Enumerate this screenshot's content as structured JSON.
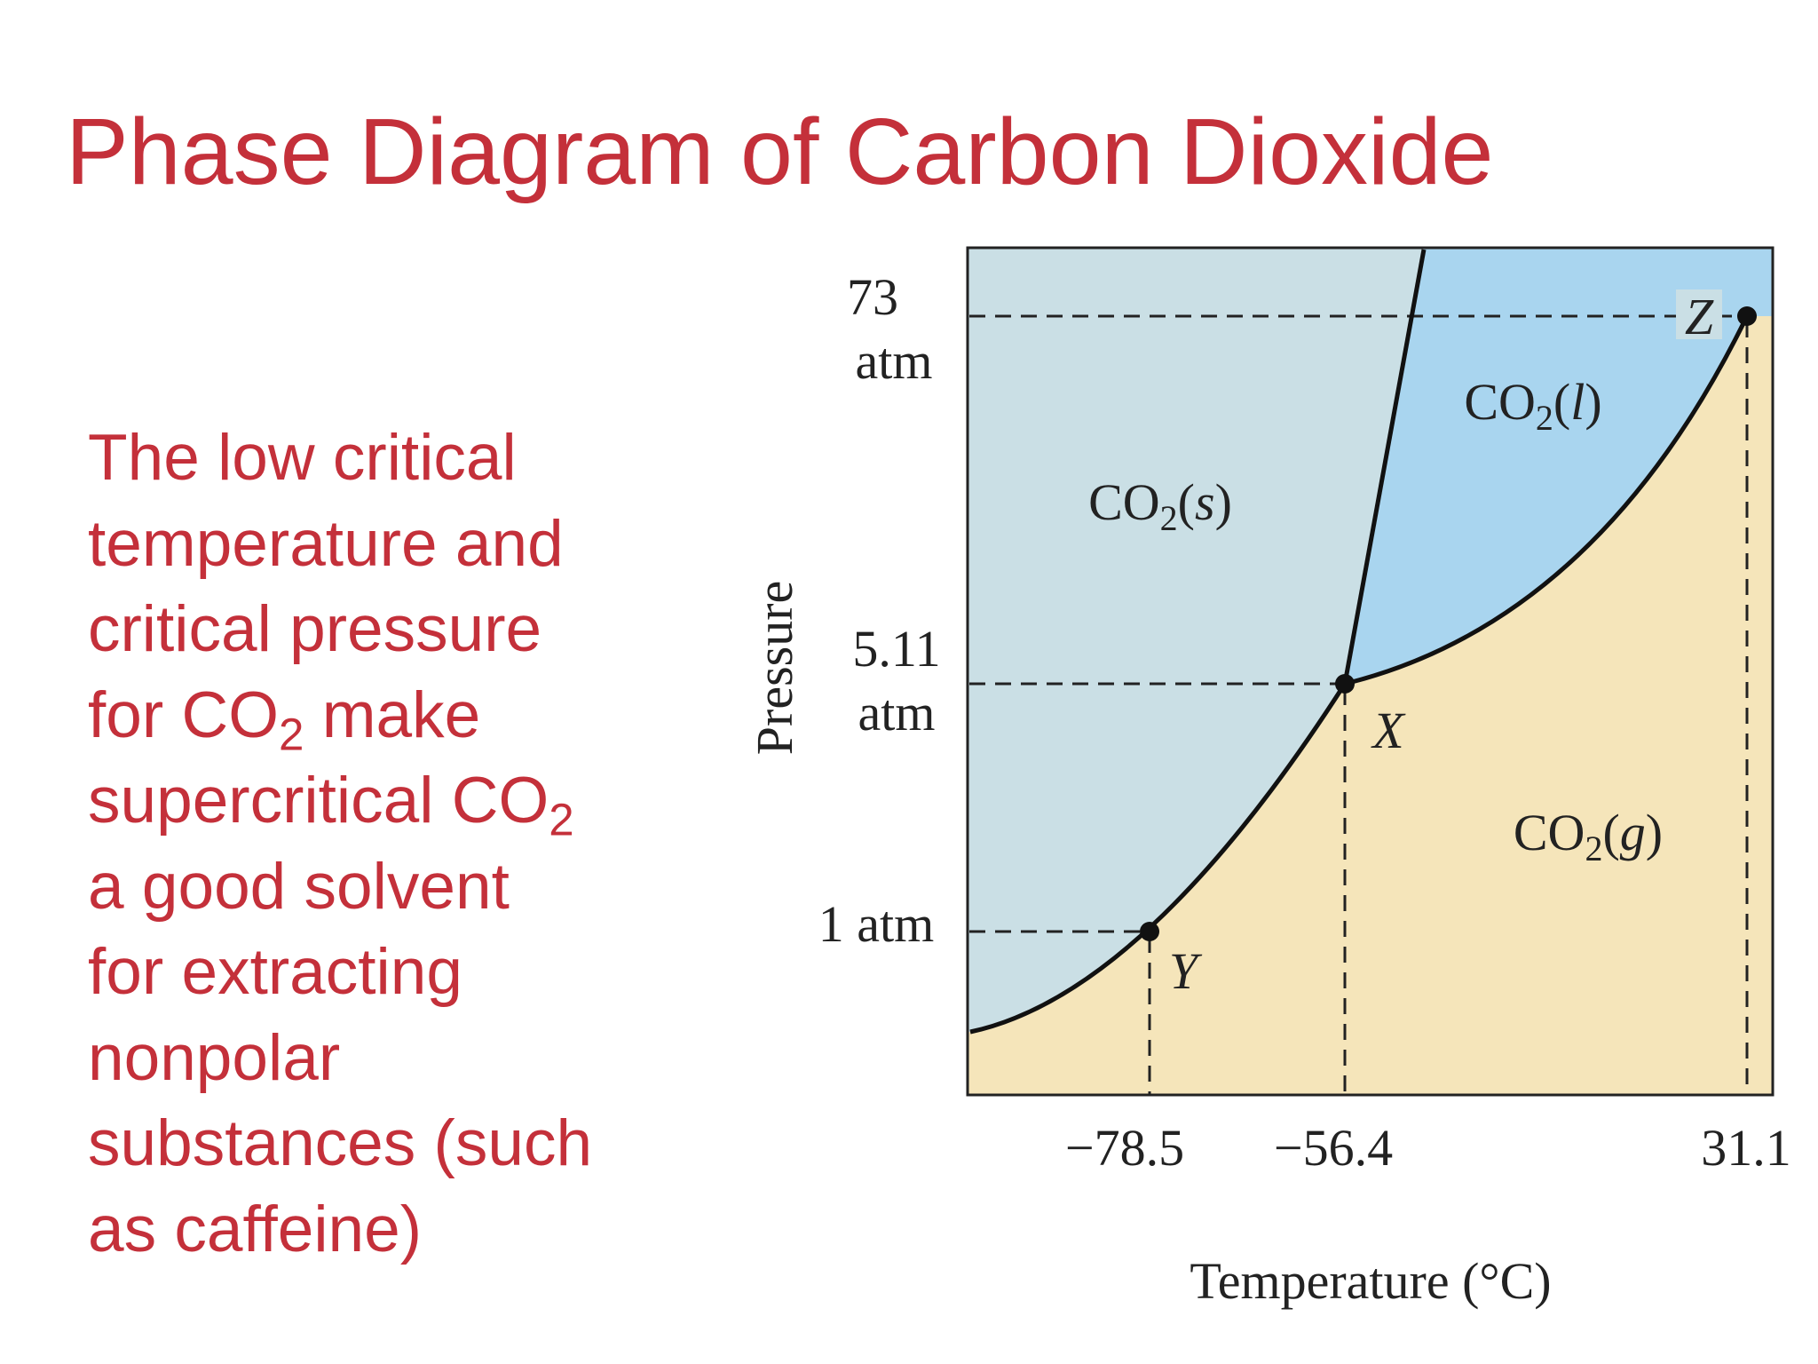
{
  "title": "Phase Diagram of Carbon Dioxide",
  "body": {
    "lines": [
      [
        "The low critical"
      ],
      [
        "temperature and"
      ],
      [
        "critical pressure"
      ],
      [
        "for CO",
        "2",
        " make"
      ],
      [
        "supercritical CO",
        "2"
      ],
      [
        "a good solvent"
      ],
      [
        "for extracting"
      ],
      [
        "nonpolar"
      ],
      [
        "substances (such"
      ],
      [
        "as caffeine)"
      ]
    ]
  },
  "diagram": {
    "y_axis": {
      "title": "Pressure",
      "labels": [
        [
          "73",
          "atm"
        ],
        [
          "5.11",
          "atm"
        ],
        [
          "1 atm"
        ]
      ]
    },
    "x_axis": {
      "title": "Temperature (°C)",
      "labels": [
        "−78.5",
        "−56.4",
        "31.1"
      ]
    },
    "phases": {
      "solid": [
        "CO",
        "2",
        "(",
        "s",
        ")"
      ],
      "liquid": [
        "CO",
        "2",
        "(",
        "l",
        ")"
      ],
      "gas": [
        "CO",
        "2",
        "(",
        "g",
        ")"
      ]
    },
    "points": [
      "X",
      "Y",
      "Z"
    ]
  }
}
